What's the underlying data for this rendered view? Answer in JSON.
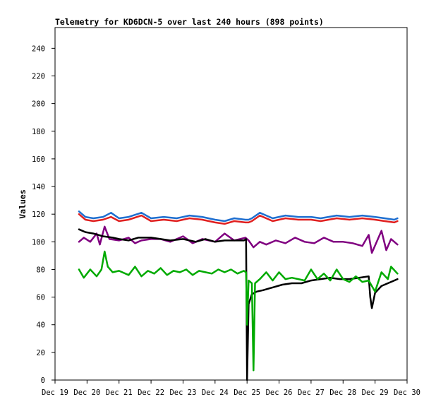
{
  "chart_data": {
    "type": "line",
    "title": "Telemetry for KD6DCN-5 over last 240 hours (898 points)",
    "xlabel": "",
    "ylabel": "Values",
    "ylim": [
      0,
      255
    ],
    "yticks": [
      0,
      20,
      40,
      60,
      80,
      100,
      120,
      140,
      160,
      180,
      200,
      220,
      240
    ],
    "xlim": [
      0,
      11
    ],
    "xticks": [
      "Dec 19",
      "Dec 20",
      "Dec 21",
      "Dec 22",
      "Dec 23",
      "Dec 24",
      "Dec 25",
      "Dec 26",
      "Dec 27",
      "Dec 28",
      "Dec 29",
      "Dec 30"
    ],
    "x_unit": "days from Dec 19 00:00",
    "grid": false,
    "legend": "none",
    "series": [
      {
        "color": "#1f6fd0",
        "points": [
          [
            0.75,
            122
          ],
          [
            0.95,
            118
          ],
          [
            1.2,
            117
          ],
          [
            1.5,
            118
          ],
          [
            1.75,
            121
          ],
          [
            2.0,
            117
          ],
          [
            2.3,
            118
          ],
          [
            2.7,
            121
          ],
          [
            3.0,
            117
          ],
          [
            3.4,
            118
          ],
          [
            3.8,
            117
          ],
          [
            4.2,
            119
          ],
          [
            4.6,
            118
          ],
          [
            5.0,
            116
          ],
          [
            5.3,
            115
          ],
          [
            5.6,
            117
          ],
          [
            5.95,
            116
          ],
          [
            6.05,
            116
          ],
          [
            6.15,
            117
          ],
          [
            6.4,
            121
          ],
          [
            6.8,
            117
          ],
          [
            7.2,
            119
          ],
          [
            7.6,
            118
          ],
          [
            8.0,
            118
          ],
          [
            8.3,
            117
          ],
          [
            8.8,
            119
          ],
          [
            9.2,
            118
          ],
          [
            9.6,
            119
          ],
          [
            10.0,
            118
          ],
          [
            10.3,
            117
          ],
          [
            10.6,
            116
          ],
          [
            10.7,
            117
          ]
        ]
      },
      {
        "color": "#e02020",
        "points": [
          [
            0.75,
            120
          ],
          [
            0.95,
            116
          ],
          [
            1.2,
            115
          ],
          [
            1.5,
            116
          ],
          [
            1.75,
            118
          ],
          [
            2.0,
            115
          ],
          [
            2.3,
            116
          ],
          [
            2.7,
            119
          ],
          [
            3.0,
            115
          ],
          [
            3.4,
            116
          ],
          [
            3.8,
            115
          ],
          [
            4.2,
            117
          ],
          [
            4.6,
            116
          ],
          [
            5.0,
            114
          ],
          [
            5.3,
            113
          ],
          [
            5.6,
            115
          ],
          [
            5.95,
            114
          ],
          [
            6.05,
            114
          ],
          [
            6.15,
            115
          ],
          [
            6.4,
            119
          ],
          [
            6.8,
            115
          ],
          [
            7.2,
            117
          ],
          [
            7.6,
            116
          ],
          [
            8.0,
            116
          ],
          [
            8.3,
            115
          ],
          [
            8.8,
            117
          ],
          [
            9.2,
            116
          ],
          [
            9.6,
            117
          ],
          [
            10.0,
            116
          ],
          [
            10.3,
            115
          ],
          [
            10.6,
            114
          ],
          [
            10.7,
            115
          ]
        ]
      },
      {
        "color": "#800080",
        "points": [
          [
            0.75,
            100
          ],
          [
            0.9,
            103
          ],
          [
            1.1,
            100
          ],
          [
            1.3,
            106
          ],
          [
            1.4,
            98
          ],
          [
            1.55,
            111
          ],
          [
            1.7,
            102
          ],
          [
            2.0,
            101
          ],
          [
            2.3,
            103
          ],
          [
            2.5,
            99
          ],
          [
            2.7,
            101
          ],
          [
            3.0,
            102
          ],
          [
            3.3,
            102
          ],
          [
            3.6,
            100
          ],
          [
            4.0,
            104
          ],
          [
            4.3,
            99
          ],
          [
            4.6,
            102
          ],
          [
            5.0,
            100
          ],
          [
            5.3,
            106
          ],
          [
            5.6,
            101
          ],
          [
            5.95,
            103
          ],
          [
            6.05,
            101
          ],
          [
            6.2,
            96
          ],
          [
            6.4,
            100
          ],
          [
            6.6,
            98
          ],
          [
            6.9,
            101
          ],
          [
            7.2,
            99
          ],
          [
            7.5,
            103
          ],
          [
            7.8,
            100
          ],
          [
            8.1,
            99
          ],
          [
            8.4,
            103
          ],
          [
            8.7,
            100
          ],
          [
            9.0,
            100
          ],
          [
            9.3,
            99
          ],
          [
            9.6,
            97
          ],
          [
            9.8,
            105
          ],
          [
            9.9,
            92
          ],
          [
            10.2,
            108
          ],
          [
            10.35,
            94
          ],
          [
            10.5,
            102
          ],
          [
            10.7,
            98
          ]
        ]
      },
      {
        "color": "#000000",
        "points": [
          [
            0.75,
            109
          ],
          [
            0.95,
            107
          ],
          [
            1.2,
            106
          ],
          [
            1.5,
            104
          ],
          [
            1.8,
            103
          ],
          [
            2.0,
            102
          ],
          [
            2.3,
            101
          ],
          [
            2.6,
            103
          ],
          [
            3.0,
            103
          ],
          [
            3.3,
            102
          ],
          [
            3.6,
            101
          ],
          [
            4.0,
            102
          ],
          [
            4.4,
            100
          ],
          [
            4.7,
            102
          ],
          [
            5.0,
            100
          ],
          [
            5.3,
            101
          ],
          [
            5.6,
            101
          ],
          [
            5.9,
            101
          ],
          [
            5.97,
            102
          ],
          [
            6.0,
            0
          ],
          [
            6.05,
            55
          ],
          [
            6.15,
            62
          ],
          [
            6.3,
            64
          ],
          [
            6.5,
            65
          ],
          [
            6.8,
            67
          ],
          [
            7.1,
            69
          ],
          [
            7.4,
            70
          ],
          [
            7.7,
            70
          ],
          [
            8.0,
            72
          ],
          [
            8.3,
            73
          ],
          [
            8.6,
            74
          ],
          [
            8.9,
            73
          ],
          [
            9.2,
            73
          ],
          [
            9.5,
            74
          ],
          [
            9.8,
            75
          ],
          [
            9.85,
            60
          ],
          [
            9.9,
            52
          ],
          [
            10.0,
            63
          ],
          [
            10.2,
            68
          ],
          [
            10.4,
            70
          ],
          [
            10.6,
            72
          ],
          [
            10.7,
            73
          ]
        ]
      },
      {
        "color": "#00aa00",
        "points": [
          [
            0.75,
            80
          ],
          [
            0.9,
            74
          ],
          [
            1.1,
            80
          ],
          [
            1.3,
            75
          ],
          [
            1.45,
            80
          ],
          [
            1.55,
            93
          ],
          [
            1.65,
            82
          ],
          [
            1.8,
            78
          ],
          [
            2.0,
            79
          ],
          [
            2.3,
            76
          ],
          [
            2.5,
            82
          ],
          [
            2.7,
            75
          ],
          [
            2.9,
            79
          ],
          [
            3.1,
            77
          ],
          [
            3.3,
            81
          ],
          [
            3.5,
            76
          ],
          [
            3.7,
            79
          ],
          [
            3.9,
            78
          ],
          [
            4.1,
            80
          ],
          [
            4.3,
            76
          ],
          [
            4.5,
            79
          ],
          [
            4.7,
            78
          ],
          [
            4.9,
            77
          ],
          [
            5.1,
            80
          ],
          [
            5.3,
            78
          ],
          [
            5.5,
            80
          ],
          [
            5.7,
            77
          ],
          [
            5.9,
            79
          ],
          [
            5.97,
            78
          ],
          [
            6.0,
            40
          ],
          [
            6.05,
            72
          ],
          [
            6.15,
            70
          ],
          [
            6.2,
            7
          ],
          [
            6.25,
            70
          ],
          [
            6.4,
            73
          ],
          [
            6.6,
            78
          ],
          [
            6.8,
            72
          ],
          [
            7.0,
            78
          ],
          [
            7.2,
            73
          ],
          [
            7.4,
            74
          ],
          [
            7.6,
            73
          ],
          [
            7.8,
            72
          ],
          [
            8.0,
            80
          ],
          [
            8.2,
            73
          ],
          [
            8.4,
            77
          ],
          [
            8.6,
            72
          ],
          [
            8.8,
            80
          ],
          [
            9.0,
            73
          ],
          [
            9.2,
            71
          ],
          [
            9.4,
            75
          ],
          [
            9.6,
            71
          ],
          [
            9.8,
            72
          ],
          [
            10.0,
            64
          ],
          [
            10.2,
            78
          ],
          [
            10.4,
            73
          ],
          [
            10.5,
            82
          ],
          [
            10.7,
            77
          ]
        ]
      }
    ]
  }
}
